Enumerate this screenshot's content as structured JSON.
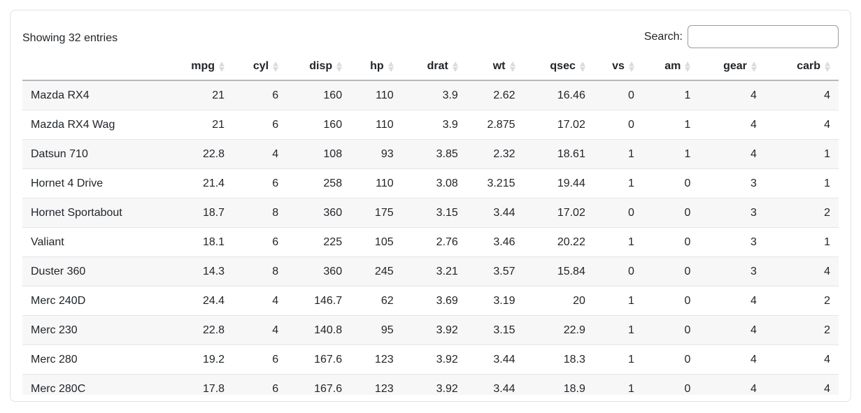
{
  "toolbar": {
    "info_text": "Showing 32 entries",
    "search_label": "Search:",
    "search_value": ""
  },
  "table": {
    "columns": [
      "",
      "mpg",
      "cyl",
      "disp",
      "hp",
      "drat",
      "wt",
      "qsec",
      "vs",
      "am",
      "gear",
      "carb"
    ],
    "col_widths_pct": [
      17.5,
      8.3,
      6.6,
      7.8,
      6.3,
      7.9,
      7.0,
      8.6,
      6.0,
      6.9,
      8.1,
      9.0
    ],
    "rows": [
      [
        "Mazda RX4",
        "21",
        "6",
        "160",
        "110",
        "3.9",
        "2.62",
        "16.46",
        "0",
        "1",
        "4",
        "4"
      ],
      [
        "Mazda RX4 Wag",
        "21",
        "6",
        "160",
        "110",
        "3.9",
        "2.875",
        "17.02",
        "0",
        "1",
        "4",
        "4"
      ],
      [
        "Datsun 710",
        "22.8",
        "4",
        "108",
        "93",
        "3.85",
        "2.32",
        "18.61",
        "1",
        "1",
        "4",
        "1"
      ],
      [
        "Hornet 4 Drive",
        "21.4",
        "6",
        "258",
        "110",
        "3.08",
        "3.215",
        "19.44",
        "1",
        "0",
        "3",
        "1"
      ],
      [
        "Hornet Sportabout",
        "18.7",
        "8",
        "360",
        "175",
        "3.15",
        "3.44",
        "17.02",
        "0",
        "0",
        "3",
        "2"
      ],
      [
        "Valiant",
        "18.1",
        "6",
        "225",
        "105",
        "2.76",
        "3.46",
        "20.22",
        "1",
        "0",
        "3",
        "1"
      ],
      [
        "Duster 360",
        "14.3",
        "8",
        "360",
        "245",
        "3.21",
        "3.57",
        "15.84",
        "0",
        "0",
        "3",
        "4"
      ],
      [
        "Merc 240D",
        "24.4",
        "4",
        "146.7",
        "62",
        "3.69",
        "3.19",
        "20",
        "1",
        "0",
        "4",
        "2"
      ],
      [
        "Merc 230",
        "22.8",
        "4",
        "140.8",
        "95",
        "3.92",
        "3.15",
        "22.9",
        "1",
        "0",
        "4",
        "2"
      ],
      [
        "Merc 280",
        "19.2",
        "6",
        "167.6",
        "123",
        "3.92",
        "3.44",
        "18.3",
        "1",
        "0",
        "4",
        "4"
      ],
      [
        "Merc 280C",
        "17.8",
        "6",
        "167.6",
        "123",
        "3.92",
        "3.44",
        "18.9",
        "1",
        "0",
        "4",
        "4"
      ]
    ]
  },
  "colors": {
    "card_border": "#dee2e6",
    "header_border": "#b7babd",
    "row_border": "#e2e5e8",
    "stripe": "#f7f7f8",
    "sort_icon": "#dcdcdc",
    "text": "#212529"
  }
}
